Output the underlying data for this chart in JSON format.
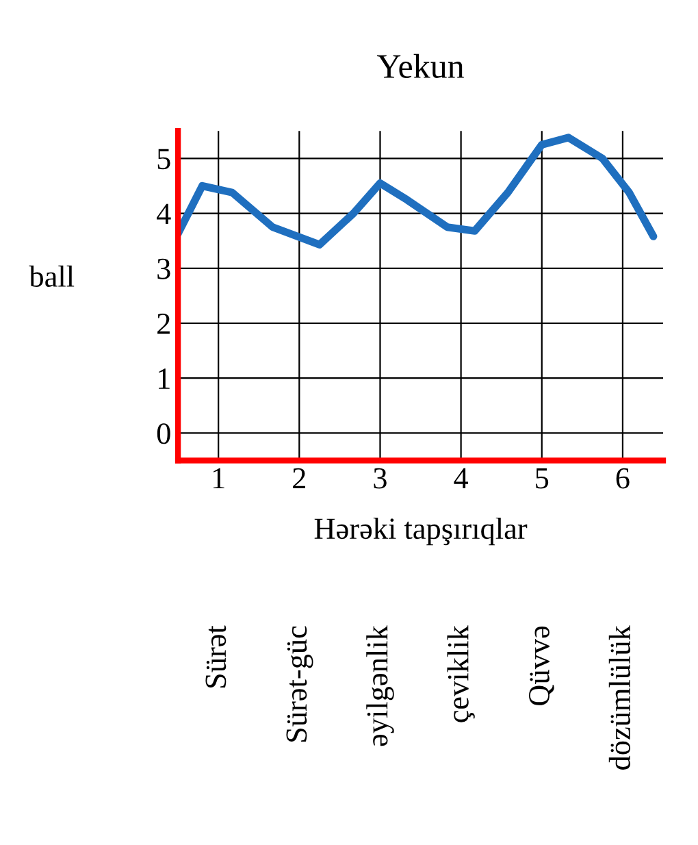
{
  "chart_data": {
    "type": "line",
    "title": "Yekun",
    "ylabel": "ball",
    "xlabel": "Hərəki tapşırıqlar",
    "x": [
      0.5,
      0.8,
      1.17,
      1.67,
      2.25,
      2.67,
      3.0,
      3.33,
      3.83,
      4.17,
      4.58,
      5.0,
      5.33,
      5.75,
      6.08,
      6.38
    ],
    "series": [
      {
        "color": "#1f6fbf",
        "values": [
          3.63,
          4.5,
          4.38,
          3.75,
          3.43,
          4.0,
          4.55,
          4.25,
          3.75,
          3.68,
          4.38,
          5.25,
          5.38,
          5.0,
          4.38,
          3.58
        ]
      }
    ],
    "xlim": [
      0.5,
      6.5
    ],
    "xticks": [
      1,
      2,
      3,
      4,
      5,
      6
    ],
    "ylim": [
      -0.5,
      5.5
    ],
    "yticks": [
      0,
      1,
      2,
      3,
      4,
      5
    ],
    "grid": true,
    "marker": "none",
    "line_style": "solid",
    "annotations": [
      "Sürət",
      "Sürət-güc",
      "əyilgənlik",
      "çeviklik",
      "Qüvvə",
      "dözümlülük"
    ]
  }
}
